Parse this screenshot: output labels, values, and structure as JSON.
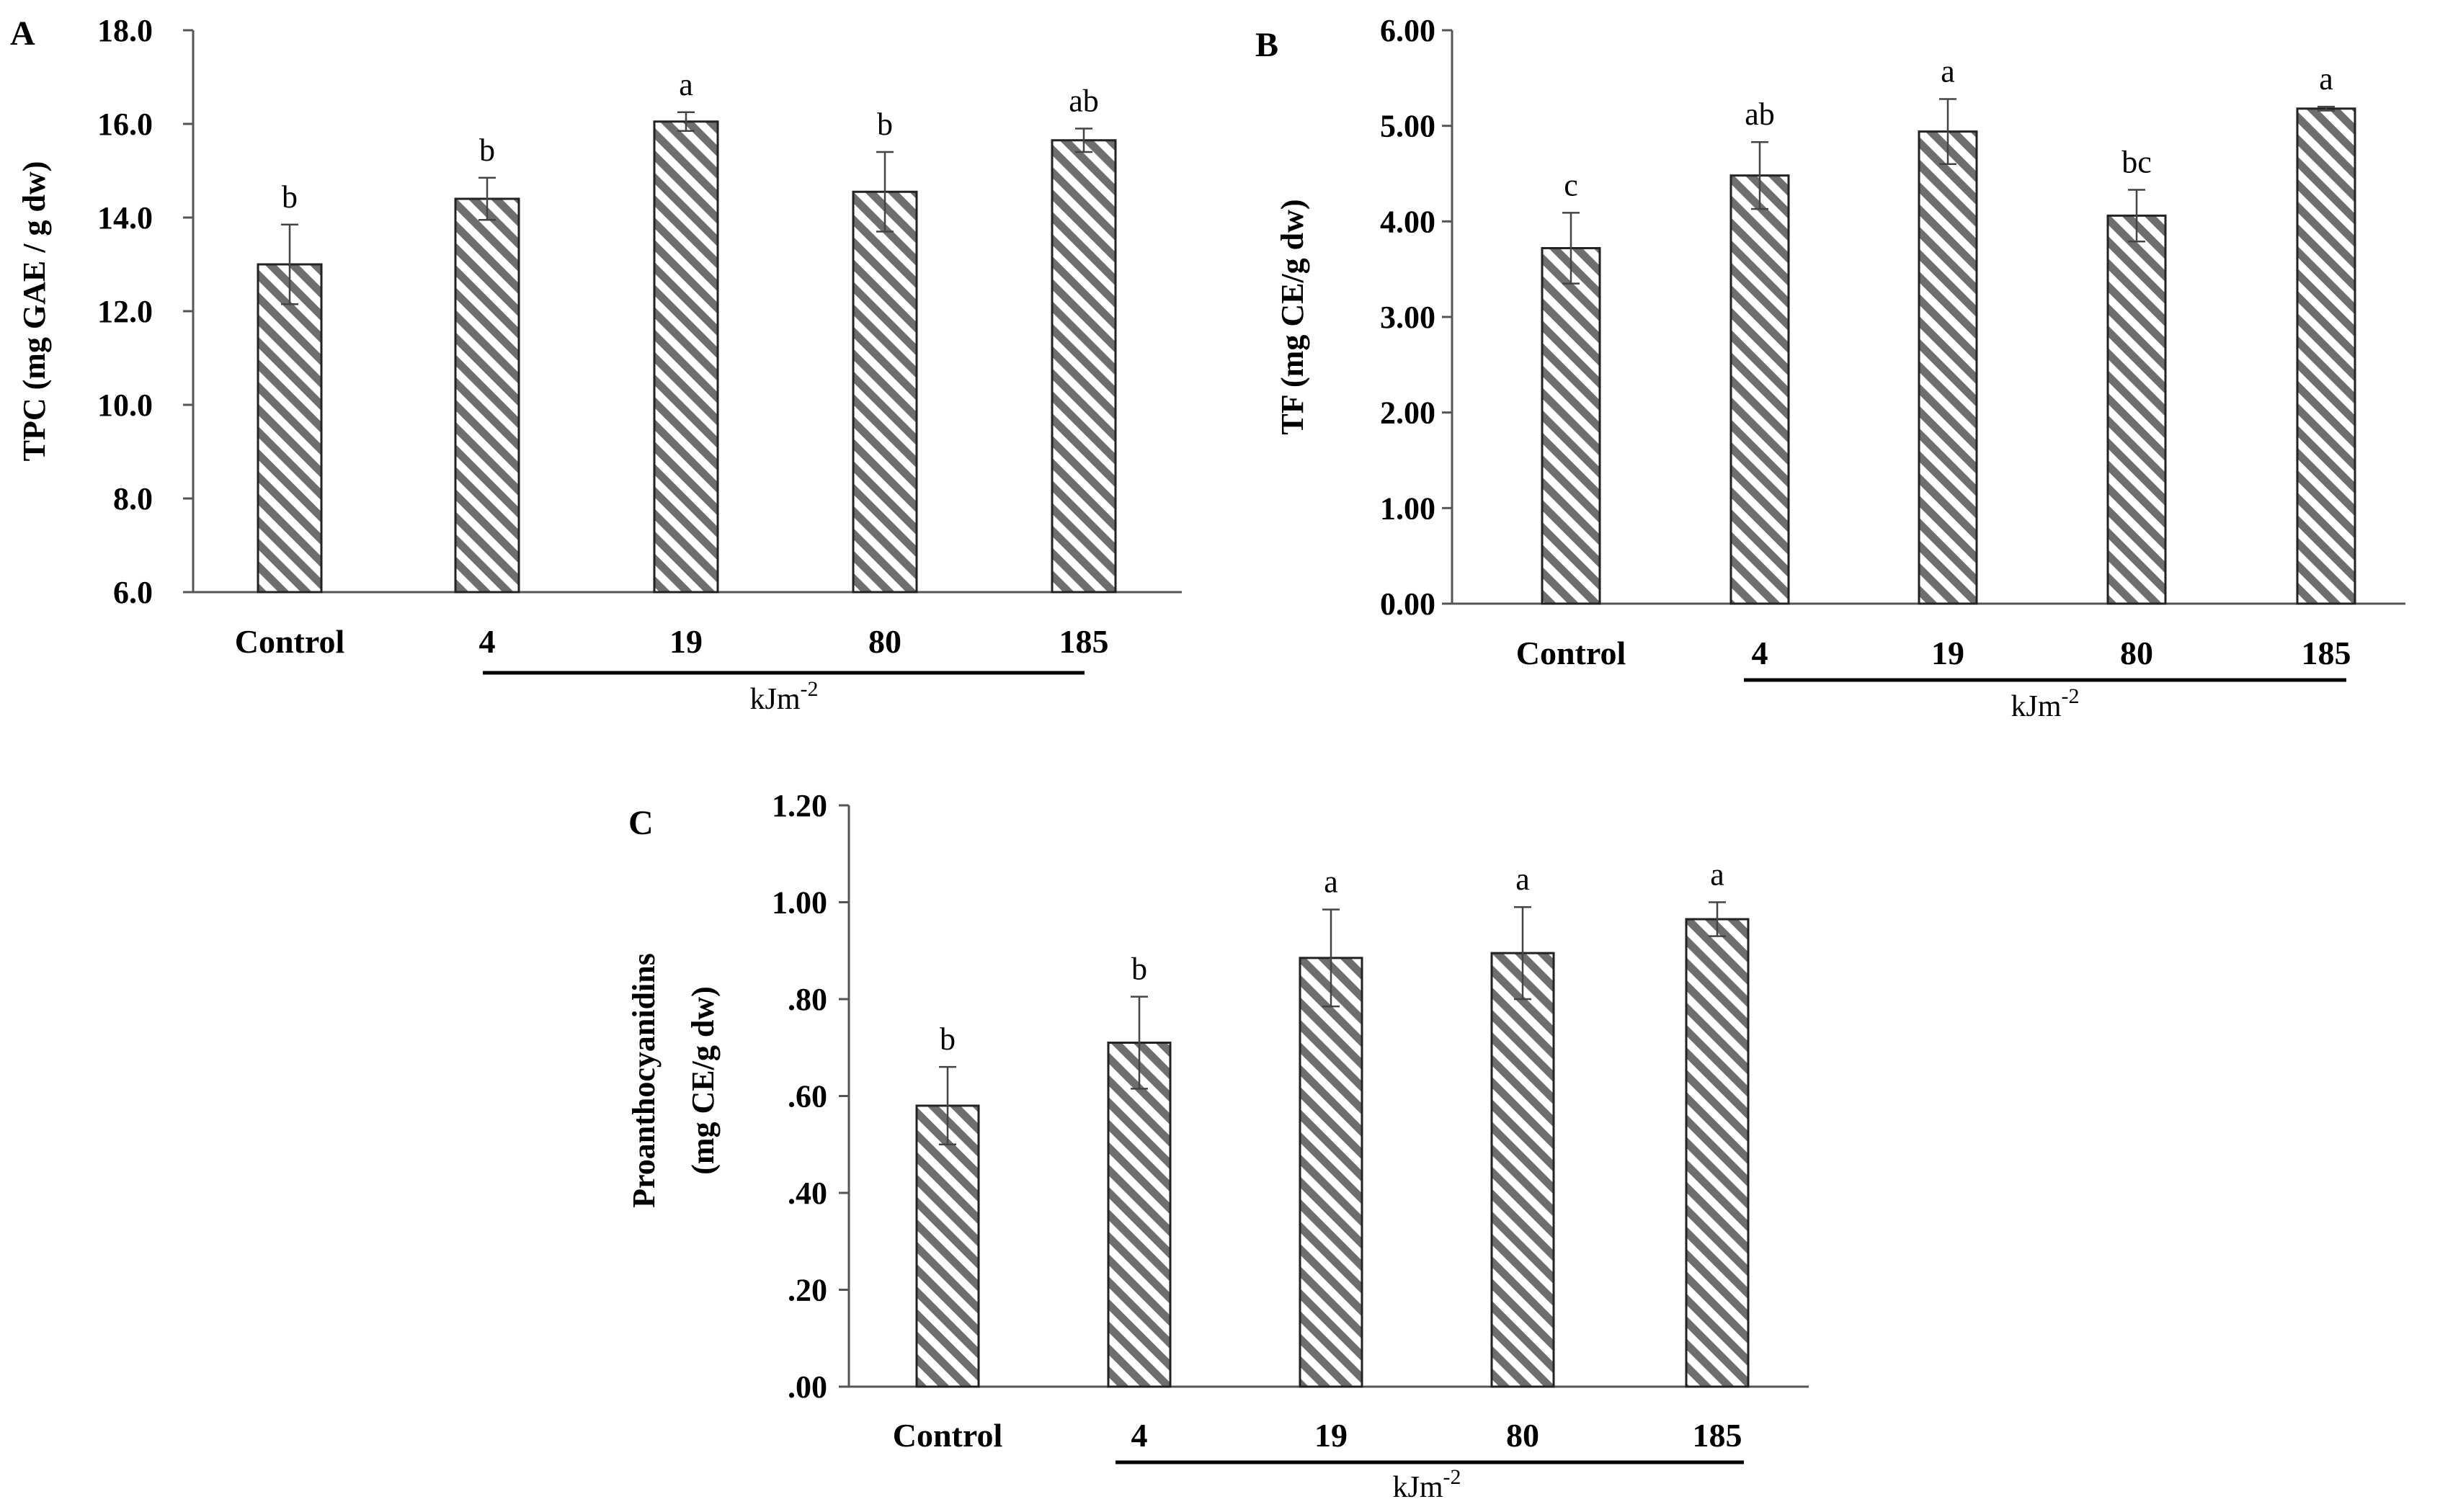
{
  "chart_data": [
    {
      "panel": "A",
      "type": "bar",
      "categories": [
        "Control",
        "4",
        "19",
        "80",
        "185"
      ],
      "values": [
        13.0,
        14.4,
        16.05,
        14.55,
        15.65
      ],
      "errors": [
        0.85,
        0.45,
        0.2,
        0.85,
        0.25
      ],
      "significance": [
        "b",
        "b",
        "a",
        "b",
        "ab"
      ],
      "ylabel": "TPC (mg GAE / g dw)",
      "xlabel": "kJm-2",
      "ylim": [
        6.0,
        18.0
      ],
      "yticks": [
        6.0,
        8.0,
        10.0,
        12.0,
        14.0,
        16.0,
        18.0
      ],
      "ytick_labels": [
        "6.0",
        "8.0",
        "10.0",
        "12.0",
        "14.0",
        "16.0",
        "18.0"
      ],
      "unit_base": "kJm",
      "unit_sup": "-2"
    },
    {
      "panel": "B",
      "type": "bar",
      "categories": [
        "Control",
        "4",
        "19",
        "80",
        "185"
      ],
      "values": [
        3.72,
        4.48,
        4.94,
        4.06,
        5.18
      ],
      "errors": [
        0.37,
        0.35,
        0.34,
        0.27,
        0.02
      ],
      "significance": [
        "c",
        "ab",
        "a",
        "bc",
        "a"
      ],
      "ylabel": "TF (mg CE/g dw)",
      "xlabel": "kJm-2",
      "ylim": [
        0.0,
        6.0
      ],
      "yticks": [
        0,
        1,
        2,
        3,
        4,
        5,
        6
      ],
      "ytick_labels": [
        "0.00",
        "1.00",
        "2.00",
        "3.00",
        "4.00",
        "5.00",
        "6.00"
      ],
      "unit_base": "kJm",
      "unit_sup": "-2"
    },
    {
      "panel": "C",
      "type": "bar",
      "categories": [
        "Control",
        "4",
        "19",
        "80",
        "185"
      ],
      "values": [
        0.58,
        0.71,
        0.885,
        0.895,
        0.965
      ],
      "errors": [
        0.08,
        0.095,
        0.1,
        0.095,
        0.035
      ],
      "significance": [
        "b",
        "b",
        "a",
        "a",
        "a"
      ],
      "ylabel": [
        "Proanthocyanidins",
        "(mg CE/g dw)"
      ],
      "xlabel": "kJm-2",
      "ylim": [
        0.0,
        1.2
      ],
      "yticks": [
        0,
        0.2,
        0.4,
        0.6,
        0.8,
        1.0,
        1.2
      ],
      "ytick_labels": [
        ".00",
        ".20",
        ".40",
        ".60",
        ".80",
        "1.00",
        "1.20"
      ],
      "unit_base": "kJm",
      "unit_sup": "-2"
    }
  ],
  "colors": {
    "hatch_stroke": "#6e6e6e",
    "bar_border": "#222222",
    "axis": "#555555"
  }
}
